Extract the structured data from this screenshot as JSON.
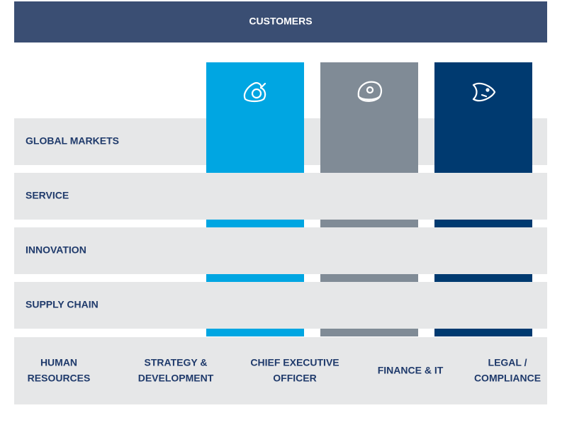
{
  "header": {
    "title": "CUSTOMERS"
  },
  "rows": [
    "GLOBAL MARKETS",
    "SERVICE",
    "INNOVATION",
    "SUPPLY CHAIN"
  ],
  "functions": [
    [
      "HUMAN",
      "RESOURCES"
    ],
    [
      "STRATEGY &",
      "DEVELOPMENT"
    ],
    [
      "CHIEF EXECUTIVE",
      "OFFICER"
    ],
    [
      "FINANCE & IT"
    ],
    [
      "LEGAL /",
      "COMPLIANCE"
    ]
  ]
}
